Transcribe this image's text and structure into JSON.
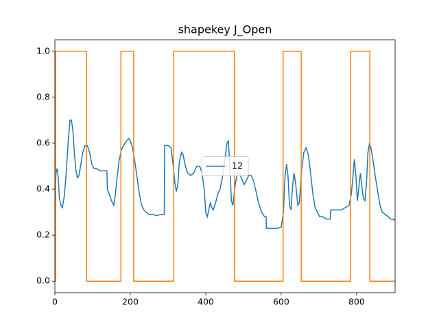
{
  "chart_data": {
    "type": "line",
    "title": "shapekey J_Open",
    "xlim": [
      0,
      902
    ],
    "ylim": [
      -0.05,
      1.05
    ],
    "xticks": [
      0,
      200,
      400,
      600,
      800
    ],
    "yticks": [
      {
        "value": 0,
        "label": "0.0"
      },
      0.2,
      0.4,
      0.6,
      0.8,
      {
        "value": 1,
        "label": "1.0"
      }
    ],
    "legend": "center",
    "series": [
      {
        "name": "12",
        "color": "#1f77b4",
        "x": [
          0,
          3,
          6,
          9,
          12,
          16,
          20,
          25,
          30,
          35,
          40,
          44,
          48,
          52,
          56,
          60,
          64,
          68,
          74,
          80,
          86,
          92,
          98,
          104,
          110,
          120,
          130,
          138,
          139,
          144,
          150,
          156,
          160,
          165,
          170,
          176,
          182,
          190,
          196,
          200,
          206,
          212,
          218,
          224,
          230,
          236,
          242,
          250,
          260,
          270,
          280,
          290,
          291,
          300,
          308,
          314,
          318,
          322,
          326,
          330,
          336,
          340,
          346,
          352,
          360,
          368,
          376,
          384,
          390,
          396,
          400,
          404,
          408,
          412,
          416,
          420,
          426,
          432,
          438,
          444,
          450,
          456,
          460,
          464,
          468,
          472,
          478,
          484,
          490,
          496,
          502,
          508,
          514,
          520,
          526,
          532,
          540,
          548,
          556,
          560,
          561,
          570,
          590,
          600,
          606,
          610,
          614,
          618,
          622,
          626,
          630,
          634,
          638,
          644,
          648,
          654,
          660,
          666,
          672,
          678,
          684,
          690,
          696,
          702,
          710,
          720,
          730,
          731,
          740,
          760,
          770,
          780,
          786,
          790,
          794,
          798,
          802,
          806,
          810,
          814,
          818,
          822,
          826,
          830,
          834,
          838,
          844,
          850,
          856,
          862,
          868,
          876,
          884,
          890,
          896,
          902
        ],
        "values": [
          0.36,
          0.47,
          0.49,
          0.45,
          0.36,
          0.33,
          0.32,
          0.37,
          0.47,
          0.6,
          0.7,
          0.7,
          0.65,
          0.55,
          0.48,
          0.45,
          0.46,
          0.5,
          0.56,
          0.59,
          0.59,
          0.56,
          0.51,
          0.49,
          0.49,
          0.48,
          0.48,
          0.48,
          0.4,
          0.38,
          0.35,
          0.33,
          0.37,
          0.45,
          0.52,
          0.57,
          0.59,
          0.61,
          0.62,
          0.61,
          0.58,
          0.52,
          0.45,
          0.38,
          0.33,
          0.31,
          0.3,
          0.29,
          0.29,
          0.285,
          0.29,
          0.29,
          0.59,
          0.59,
          0.58,
          0.5,
          0.43,
          0.39,
          0.42,
          0.52,
          0.56,
          0.55,
          0.5,
          0.47,
          0.46,
          0.47,
          0.5,
          0.5,
          0.47,
          0.4,
          0.3,
          0.28,
          0.31,
          0.34,
          0.32,
          0.31,
          0.34,
          0.38,
          0.4,
          0.45,
          0.52,
          0.6,
          0.61,
          0.5,
          0.35,
          0.33,
          0.42,
          0.47,
          0.47,
          0.44,
          0.42,
          0.44,
          0.46,
          0.46,
          0.44,
          0.4,
          0.34,
          0.3,
          0.28,
          0.28,
          0.23,
          0.23,
          0.23,
          0.235,
          0.3,
          0.45,
          0.51,
          0.46,
          0.33,
          0.31,
          0.41,
          0.47,
          0.43,
          0.33,
          0.34,
          0.48,
          0.56,
          0.58,
          0.55,
          0.47,
          0.38,
          0.32,
          0.3,
          0.28,
          0.28,
          0.27,
          0.27,
          0.31,
          0.31,
          0.31,
          0.32,
          0.33,
          0.38,
          0.45,
          0.53,
          0.46,
          0.35,
          0.41,
          0.47,
          0.41,
          0.36,
          0.35,
          0.42,
          0.56,
          0.6,
          0.58,
          0.52,
          0.45,
          0.39,
          0.33,
          0.3,
          0.29,
          0.28,
          0.27,
          0.27,
          0.265
        ]
      },
      {
        "color": "#ff7f0e",
        "x": [
          0,
          2,
          2,
          84,
          84,
          175,
          175,
          209,
          209,
          315,
          315,
          476,
          476,
          605,
          605,
          653,
          653,
          784,
          784,
          835,
          835,
          902
        ],
        "values": [
          0,
          0,
          1,
          1,
          0,
          0,
          1,
          1,
          0,
          0,
          1,
          1,
          0,
          0,
          1,
          1,
          0,
          0,
          1,
          1,
          0,
          0
        ]
      }
    ]
  }
}
